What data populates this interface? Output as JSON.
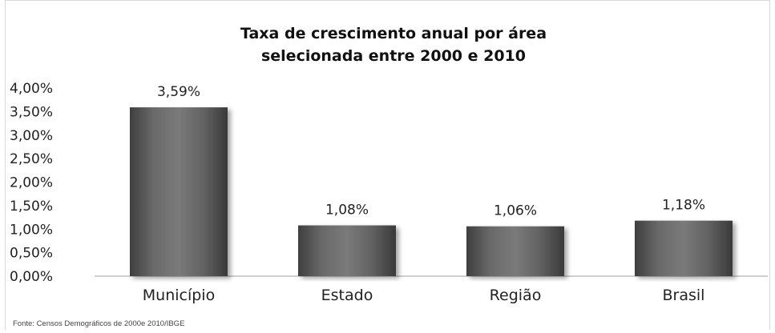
{
  "chart_data": {
    "type": "bar",
    "title": "Taxa de crescimento anual por área",
    "subtitle": "selecionada entre 2000 e 2010",
    "categories": [
      "Município",
      "Estado",
      "Região",
      "Brasil"
    ],
    "values": [
      3.59,
      1.08,
      1.06,
      1.18
    ],
    "value_labels": [
      "3,59%",
      "1,08%",
      "1,06%",
      "1,18%"
    ],
    "ylim": [
      0,
      4
    ],
    "yticks": [
      0,
      0.5,
      1,
      1.5,
      2,
      2.5,
      3,
      3.5,
      4
    ],
    "ytick_labels": [
      "0,00%",
      "0,50%",
      "1,00%",
      "1,50%",
      "2,00%",
      "2,50%",
      "3,00%",
      "3,50%",
      "4,00%"
    ],
    "xlabel": "",
    "ylabel": "",
    "grid": false,
    "legend": "none",
    "bar_color": "#5a5a5a",
    "source": "Fonte: Censos Demográficos de 2000e 2010/IBGE"
  }
}
